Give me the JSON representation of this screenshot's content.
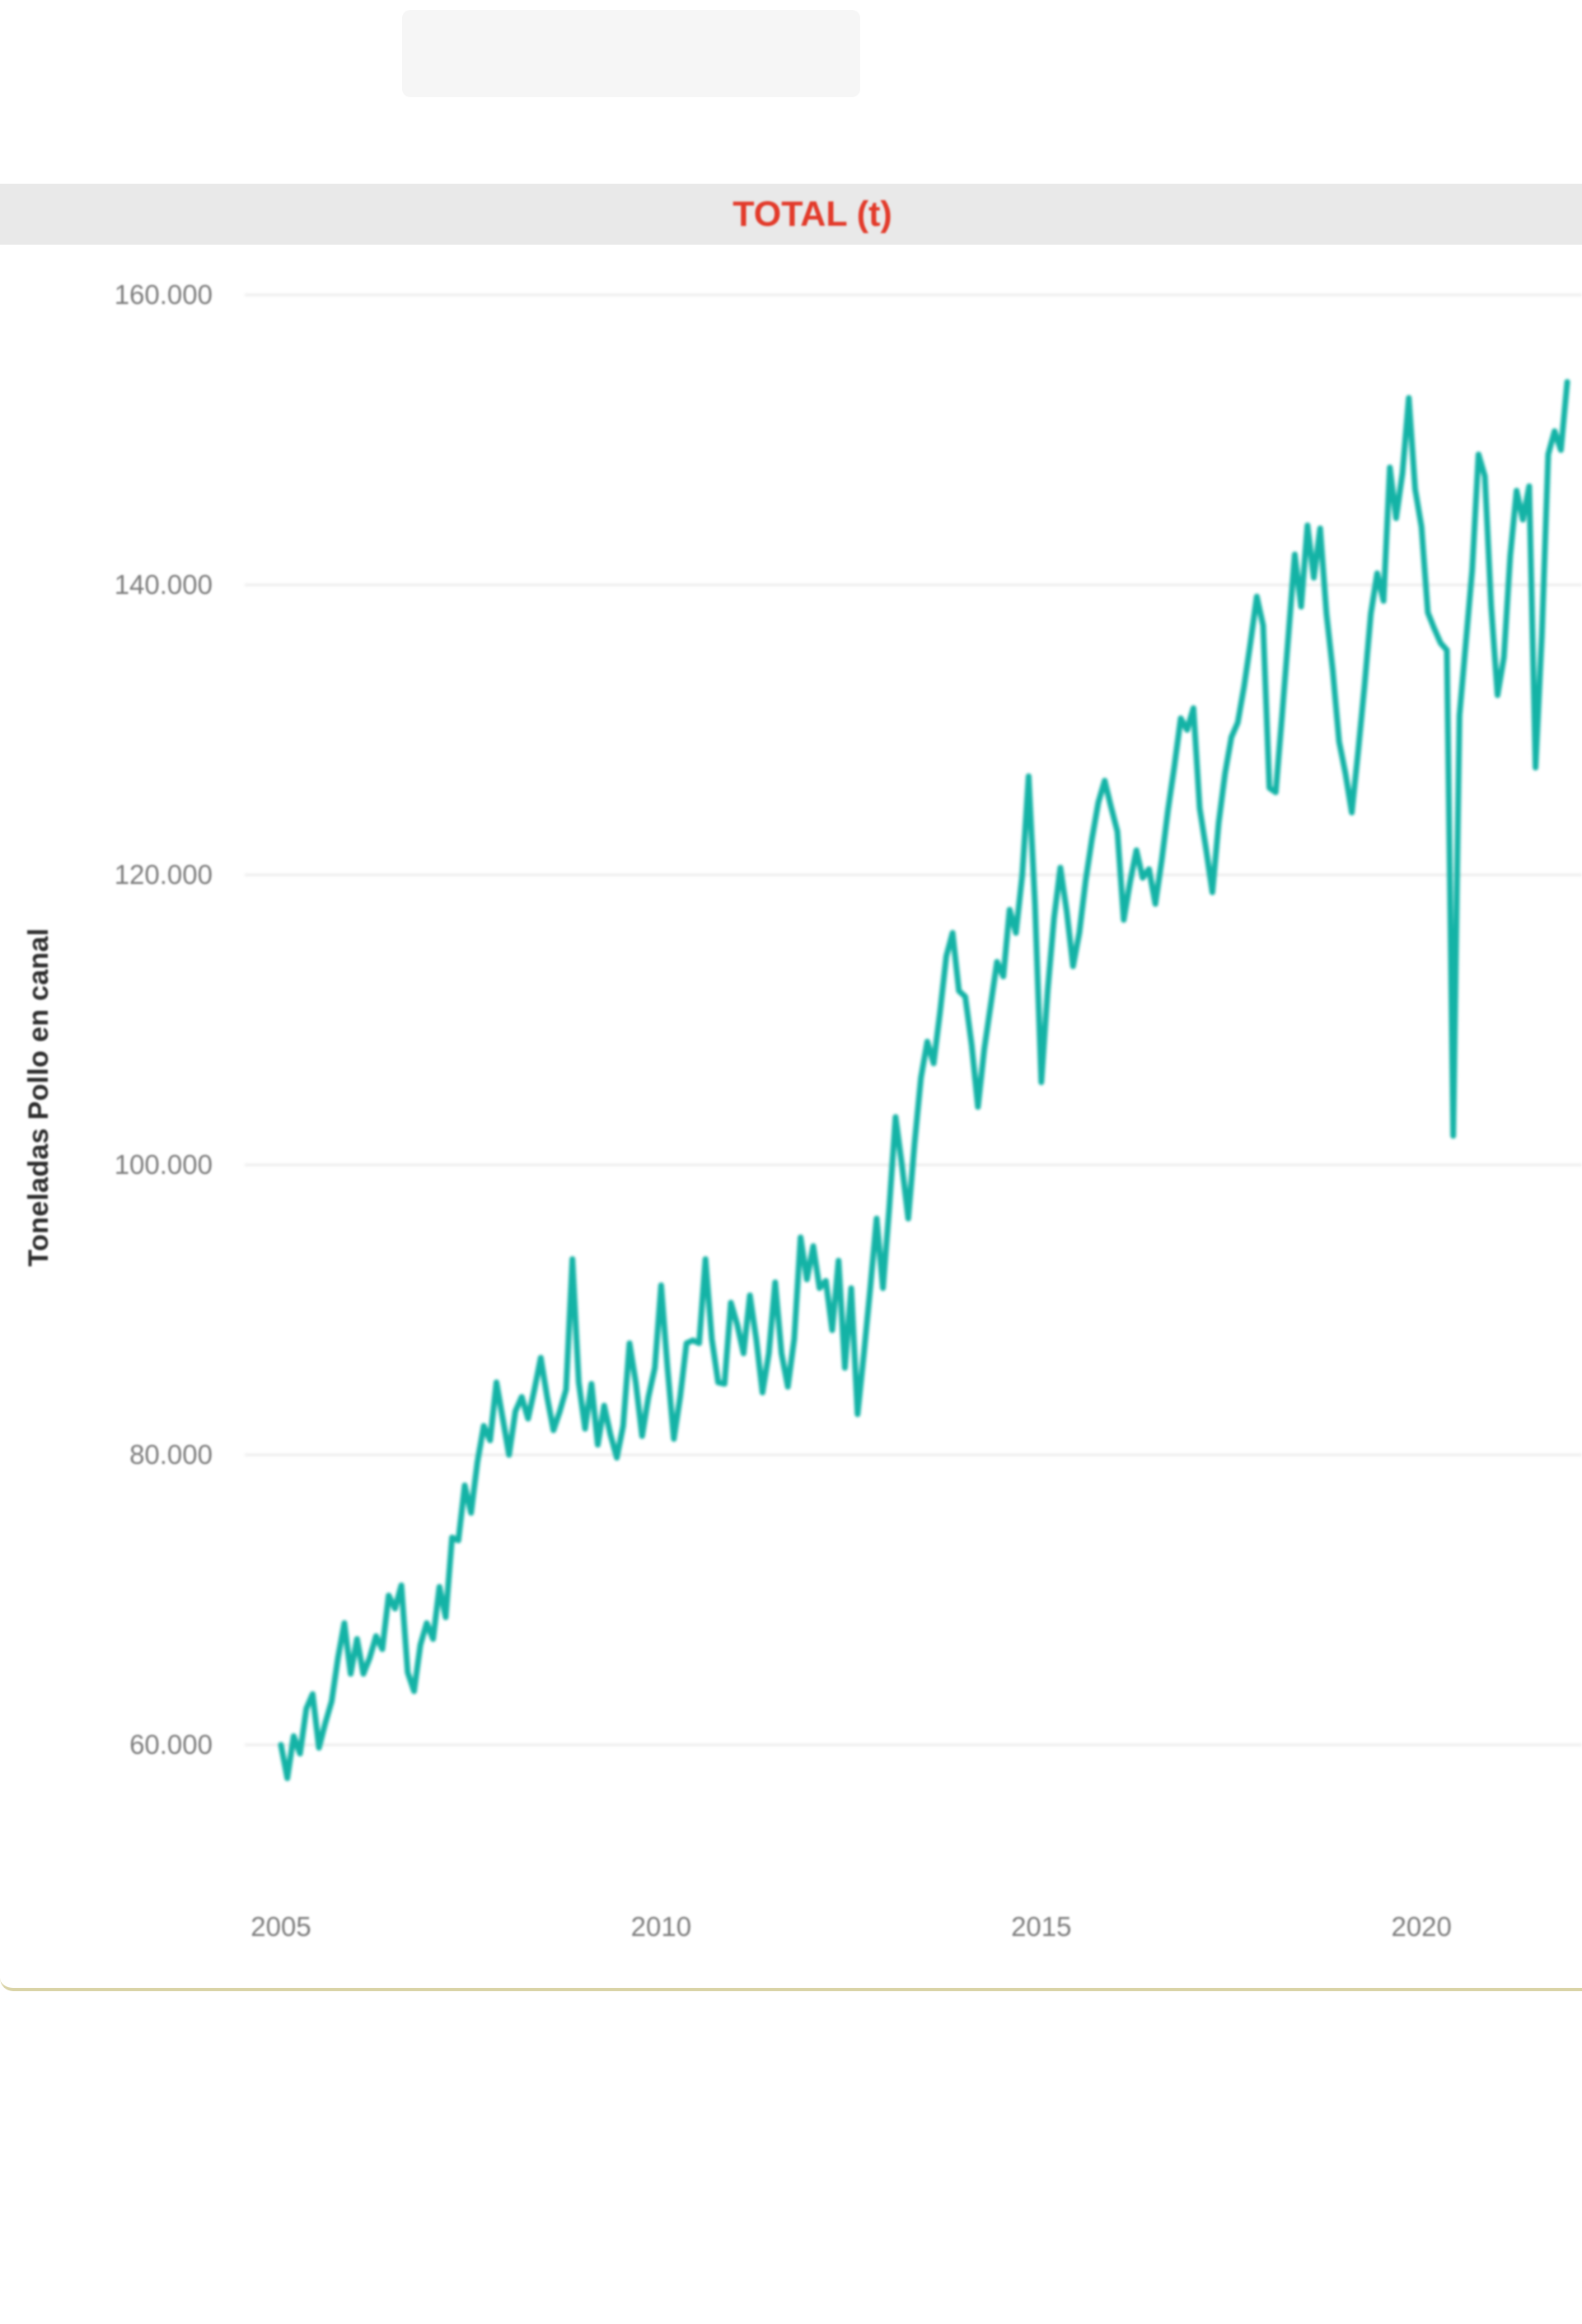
{
  "chart": {
    "title": "TOTAL (t)",
    "title_color": "#e23a2a",
    "line_color": "#14b3a6",
    "y_axis_title": "Toneladas Pollo en canal",
    "x_ticks": [
      "2005",
      "2010",
      "2015",
      "2020"
    ],
    "y_ticks": [
      "160.000",
      "140.000",
      "120.000",
      "100.000",
      "80.000",
      "60.000"
    ]
  },
  "chart_data": {
    "type": "line",
    "title": "TOTAL (t)",
    "xlabel": "",
    "ylabel": "Toneladas Pollo en canal",
    "x_frequency": "monthly",
    "x_range": [
      "2005-01",
      "2021-12"
    ],
    "x_tick_labels": [
      "2005",
      "2010",
      "2015",
      "2020"
    ],
    "y_tick_labels": [
      "160.000",
      "140.000",
      "120.000",
      "100.000",
      "80.000",
      "60.000"
    ],
    "ylim": [
      55000,
      163000
    ],
    "grid": "horizontal",
    "legend": "none",
    "series": [
      {
        "name": "TOTAL (t)",
        "values": [
          60000,
          57700,
          60600,
          59400,
          62500,
          63500,
          59800,
          61500,
          63000,
          66000,
          68400,
          64900,
          67300,
          64900,
          66000,
          67500,
          66600,
          70300,
          69400,
          71000,
          65000,
          63700,
          66900,
          68400,
          67300,
          70900,
          68800,
          74300,
          74100,
          77900,
          76000,
          79500,
          82000,
          81000,
          85000,
          82500,
          80000,
          83000,
          84000,
          82500,
          84500,
          86700,
          84000,
          81700,
          83000,
          84500,
          93500,
          85000,
          81800,
          84900,
          80700,
          83400,
          81400,
          79800,
          82000,
          87700,
          85000,
          81300,
          84000,
          86000,
          91700,
          86000,
          81100,
          84000,
          87700,
          87900,
          87700,
          93500,
          88000,
          85000,
          84900,
          90500,
          89000,
          87000,
          91000,
          88000,
          84300,
          87000,
          91900,
          87000,
          84700,
          88000,
          95000,
          92100,
          94400,
          91500,
          92000,
          88600,
          93400,
          86000,
          91500,
          82800,
          87000,
          91500,
          96300,
          91500,
          97000,
          103300,
          100000,
          96300,
          101500,
          106000,
          108500,
          107000,
          110500,
          114400,
          116000,
          112000,
          111600,
          108300,
          104000,
          108000,
          111000,
          114000,
          113000,
          117600,
          116000,
          120000,
          126800,
          118000,
          105700,
          112000,
          117000,
          120500,
          117500,
          113700,
          116000,
          119600,
          122500,
          125000,
          126500,
          124700,
          123000,
          116900,
          119500,
          121700,
          119800,
          120400,
          118000,
          121000,
          124500,
          127500,
          130800,
          130000,
          131500,
          124600,
          121800,
          118800,
          123600,
          127000,
          129500,
          130500,
          133000,
          136000,
          139200,
          137200,
          126000,
          125700,
          131000,
          136500,
          142100,
          138500,
          144100,
          140500,
          143900,
          138000,
          134100,
          129200,
          127000,
          124300,
          128500,
          133000,
          138000,
          140800,
          138900,
          148100,
          144600,
          147700,
          152900,
          146600,
          144000,
          138100,
          137000,
          136000,
          135500,
          102000,
          131000,
          136000,
          141000,
          149000,
          147500,
          138500,
          132400,
          135000,
          142000,
          146500,
          144500,
          146800,
          127400,
          136500,
          149000,
          150600,
          149300,
          154000
        ]
      }
    ]
  }
}
